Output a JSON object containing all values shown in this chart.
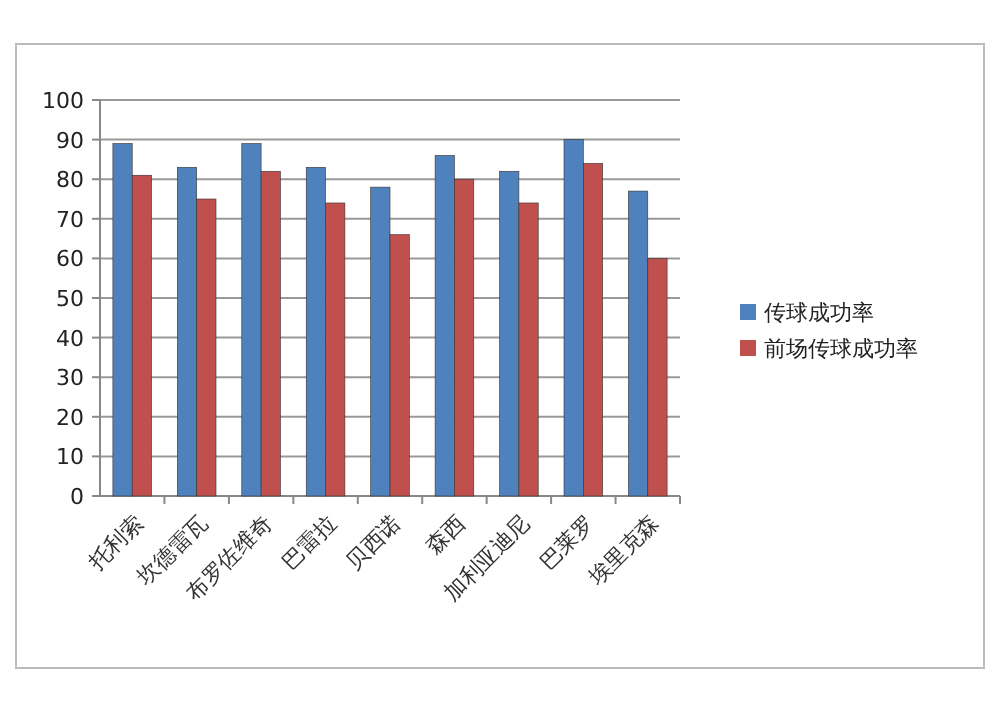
{
  "chart_data": {
    "type": "bar",
    "categories": [
      "托利索",
      "坎德雷瓦",
      "布罗佐维奇",
      "巴雷拉",
      "贝西诺",
      "森西",
      "加利亚迪尼",
      "巴莱罗",
      "埃里克森"
    ],
    "series": [
      {
        "name": "传球成功率",
        "color": "#4f81bd",
        "values": [
          89,
          83,
          89,
          83,
          78,
          86,
          82,
          90,
          77
        ]
      },
      {
        "name": "前场传球成功率",
        "color": "#c0504d",
        "values": [
          81,
          75,
          82,
          74,
          66,
          80,
          74,
          84,
          60
        ]
      }
    ],
    "ylim": [
      0,
      100
    ],
    "yticks": [
      0,
      10,
      20,
      30,
      40,
      50,
      60,
      70,
      80,
      90,
      100
    ],
    "grid": "y",
    "legend": "right"
  }
}
